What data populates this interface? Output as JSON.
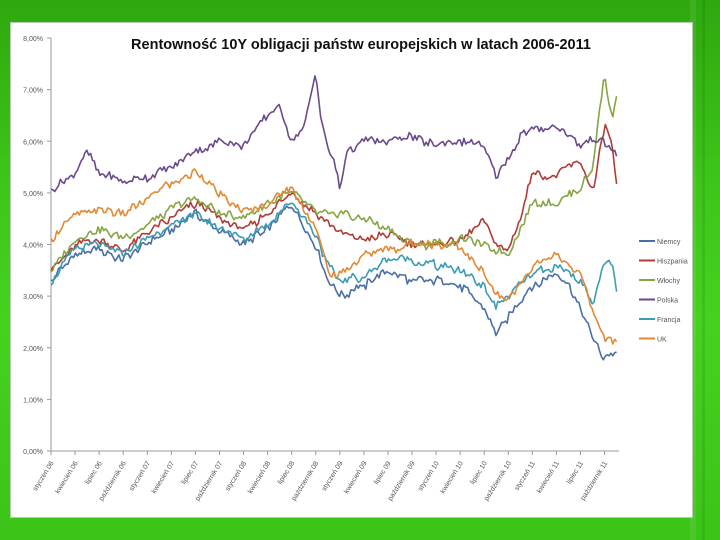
{
  "colors": {
    "Niemcy": "#4a6fa5",
    "Hiszpania": "#b03c37",
    "Włochy": "#86a544",
    "Polska": "#6b4a8b",
    "Francja": "#3c9bb5",
    "UK": "#e08a35"
  },
  "chart_data": {
    "type": "line",
    "title": "Rentowność 10Y obligacji państw europejskich w latach 2006-2011",
    "ylim": [
      0,
      8
    ],
    "y_ticks": [
      "0,00%",
      "1,00%",
      "2,00%",
      "3,00%",
      "4,00%",
      "5,00%",
      "6,00%",
      "7,00%",
      "8,00%"
    ],
    "y_tick_values": [
      0,
      1,
      2,
      3,
      4,
      5,
      6,
      7,
      8
    ],
    "x_labels": [
      "styczeń 06",
      "kwiecień 06",
      "lipiec 06",
      "październik 06",
      "styczeń 07",
      "kwiecień 07",
      "lipiec 07",
      "październik 07",
      "styczeń 08",
      "kwiecień 08",
      "lipiec 08",
      "październik 08",
      "styczeń 09",
      "kwiecień 09",
      "lipiec 09",
      "październik 09",
      "styczeń 10",
      "kwiecień 10",
      "lipiec 10",
      "październik 10",
      "styczeń 11",
      "kwiecień 11",
      "lipiec 11",
      "październik 11"
    ],
    "x_range": [
      0,
      23.6
    ],
    "series": [
      {
        "name": "Niemcy",
        "x": [
          0,
          1,
          2,
          3,
          4,
          5,
          6,
          7,
          8,
          9,
          10,
          10.5,
          11,
          11.5,
          12,
          13,
          14,
          15,
          16,
          17,
          18,
          18.5,
          19,
          20,
          21,
          21.5,
          22,
          22.5,
          23,
          23.5
        ],
        "values": [
          3.3,
          3.8,
          3.9,
          3.7,
          4.0,
          4.3,
          4.6,
          4.3,
          4.0,
          4.3,
          4.8,
          4.4,
          4.0,
          3.3,
          3.0,
          3.2,
          3.5,
          3.3,
          3.3,
          3.2,
          2.8,
          2.3,
          2.6,
          3.2,
          3.4,
          3.2,
          2.8,
          2.2,
          1.8,
          1.9
        ]
      },
      {
        "name": "Hiszpania",
        "x": [
          0,
          1,
          2,
          3,
          4,
          5,
          6,
          7,
          8,
          9,
          10,
          11,
          12,
          13,
          14,
          15,
          16,
          17,
          18,
          18.5,
          19,
          19.5,
          20,
          21,
          21.5,
          22,
          22.5,
          23,
          23.3,
          23.5
        ],
        "values": [
          3.5,
          4.0,
          4.1,
          3.9,
          4.2,
          4.5,
          4.8,
          4.5,
          4.3,
          4.6,
          5.0,
          4.6,
          4.2,
          4.1,
          4.2,
          4.0,
          4.0,
          4.1,
          4.5,
          4.0,
          3.9,
          4.5,
          5.4,
          5.3,
          5.5,
          5.6,
          5.0,
          6.3,
          6.0,
          5.1
        ]
      },
      {
        "name": "Włochy",
        "x": [
          0,
          1,
          2,
          3,
          4,
          5,
          6,
          7,
          8,
          9,
          10,
          11,
          12,
          13,
          14,
          15,
          16,
          17,
          18,
          19,
          20,
          21,
          22,
          22.5,
          23,
          23.3,
          23.5
        ],
        "values": [
          3.5,
          4.1,
          4.3,
          4.1,
          4.4,
          4.7,
          4.9,
          4.6,
          4.5,
          4.8,
          5.0,
          4.6,
          4.6,
          4.5,
          4.3,
          4.0,
          4.0,
          4.1,
          4.0,
          3.8,
          4.8,
          4.8,
          5.1,
          5.5,
          7.3,
          6.4,
          6.9
        ]
      },
      {
        "name": "Polska",
        "x": [
          0,
          1,
          1.5,
          2,
          3,
          4,
          5,
          6,
          7,
          8,
          9,
          9.5,
          10,
          10.5,
          11,
          11.2,
          11.4,
          11.8,
          12,
          12.3,
          13,
          14,
          15,
          16,
          17,
          18,
          18.5,
          19,
          19.5,
          20,
          21,
          21.5,
          22,
          22.5,
          23,
          23.5
        ],
        "values": [
          5.0,
          5.4,
          5.8,
          5.4,
          5.2,
          5.3,
          5.5,
          5.8,
          6.0,
          5.9,
          6.5,
          6.7,
          6.0,
          6.2,
          7.4,
          6.5,
          6.0,
          5.5,
          5.1,
          5.8,
          6.0,
          6.0,
          6.1,
          5.9,
          6.0,
          5.9,
          5.3,
          5.7,
          6.1,
          6.2,
          6.3,
          6.1,
          5.9,
          6.1,
          6.0,
          5.8
        ]
      },
      {
        "name": "Francja",
        "x": [
          0,
          1,
          2,
          3,
          4,
          5,
          6,
          7,
          8,
          9,
          10,
          11,
          11.5,
          12,
          13,
          14,
          15,
          16,
          17,
          18,
          18.5,
          19,
          20,
          21,
          22,
          22.5,
          23,
          23.3,
          23.5
        ],
        "values": [
          3.3,
          3.9,
          4.0,
          3.8,
          4.1,
          4.4,
          4.6,
          4.3,
          4.1,
          4.4,
          4.8,
          4.2,
          3.6,
          3.3,
          3.4,
          3.7,
          3.7,
          3.6,
          3.5,
          3.2,
          2.8,
          3.0,
          3.4,
          3.6,
          3.3,
          2.9,
          3.6,
          3.7,
          3.1
        ]
      },
      {
        "name": "UK",
        "x": [
          0,
          1,
          2,
          3,
          4,
          5,
          6,
          7,
          8,
          9,
          10,
          11,
          11.5,
          12,
          13,
          14,
          15,
          16,
          17,
          18,
          18.5,
          19,
          20,
          21,
          22,
          22.5,
          23,
          23.5
        ],
        "values": [
          4.1,
          4.6,
          4.7,
          4.6,
          4.9,
          5.2,
          5.4,
          5.0,
          4.6,
          4.8,
          5.1,
          4.3,
          3.5,
          3.4,
          3.8,
          3.9,
          4.0,
          4.0,
          4.0,
          3.4,
          3.0,
          2.9,
          3.6,
          3.8,
          3.4,
          2.7,
          2.2,
          2.1
        ]
      }
    ]
  }
}
